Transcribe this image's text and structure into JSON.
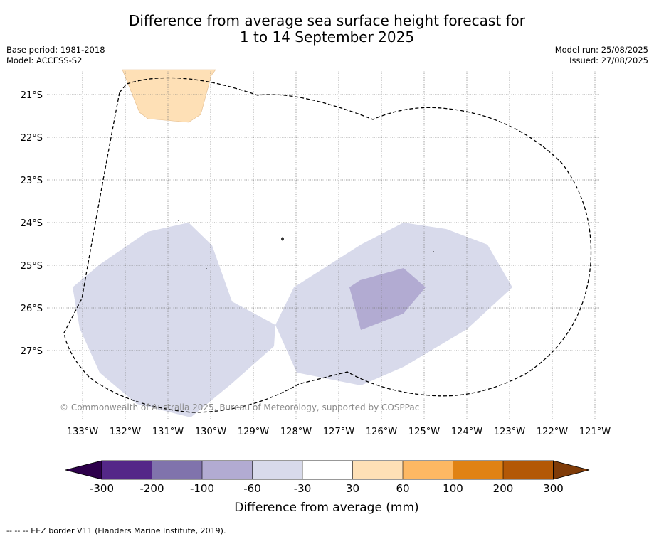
{
  "title": {
    "line1": "Difference from average sea surface height forecast for",
    "line2": "1 to 14 September 2025"
  },
  "meta": {
    "base_period": "Base period: 1981-2018",
    "model": "Model: ACCESS-S2",
    "model_run": "Model run: 25/08/2025",
    "issued": "Issued: 27/08/2025"
  },
  "map": {
    "lon_labels": [
      "133°W",
      "132°W",
      "131°W",
      "130°W",
      "129°W",
      "128°W",
      "127°W",
      "126°W",
      "125°W",
      "124°W",
      "123°W",
      "122°W",
      "121°W"
    ],
    "lat_labels": [
      "21°S",
      "22°S",
      "23°S",
      "24°S",
      "25°S",
      "26°S",
      "27°S"
    ],
    "copyright": "© Commonwealth of Australia 2025, Bureau of Meteorology, supported by COSPPac",
    "colors": {
      "positive_30_60": "#fee0b6",
      "negative_60_30": "#d8daeb",
      "negative_100_60": "#b2abd2",
      "eez_border": "#000000"
    }
  },
  "colorbar": {
    "label": "Difference from average (mm)",
    "ticks": [
      "-300",
      "-200",
      "-100",
      "-60",
      "-30",
      "30",
      "60",
      "100",
      "200",
      "300"
    ],
    "colors": [
      "#2d004b",
      "#542788",
      "#8073ac",
      "#b2abd2",
      "#d8daeb",
      "#ffffff",
      "#fee0b6",
      "#fdb863",
      "#e08214",
      "#b35806",
      "#7f3b08"
    ]
  },
  "footer": "--  --  -- EEZ border V11 (Flanders Marine Institute, 2019)."
}
